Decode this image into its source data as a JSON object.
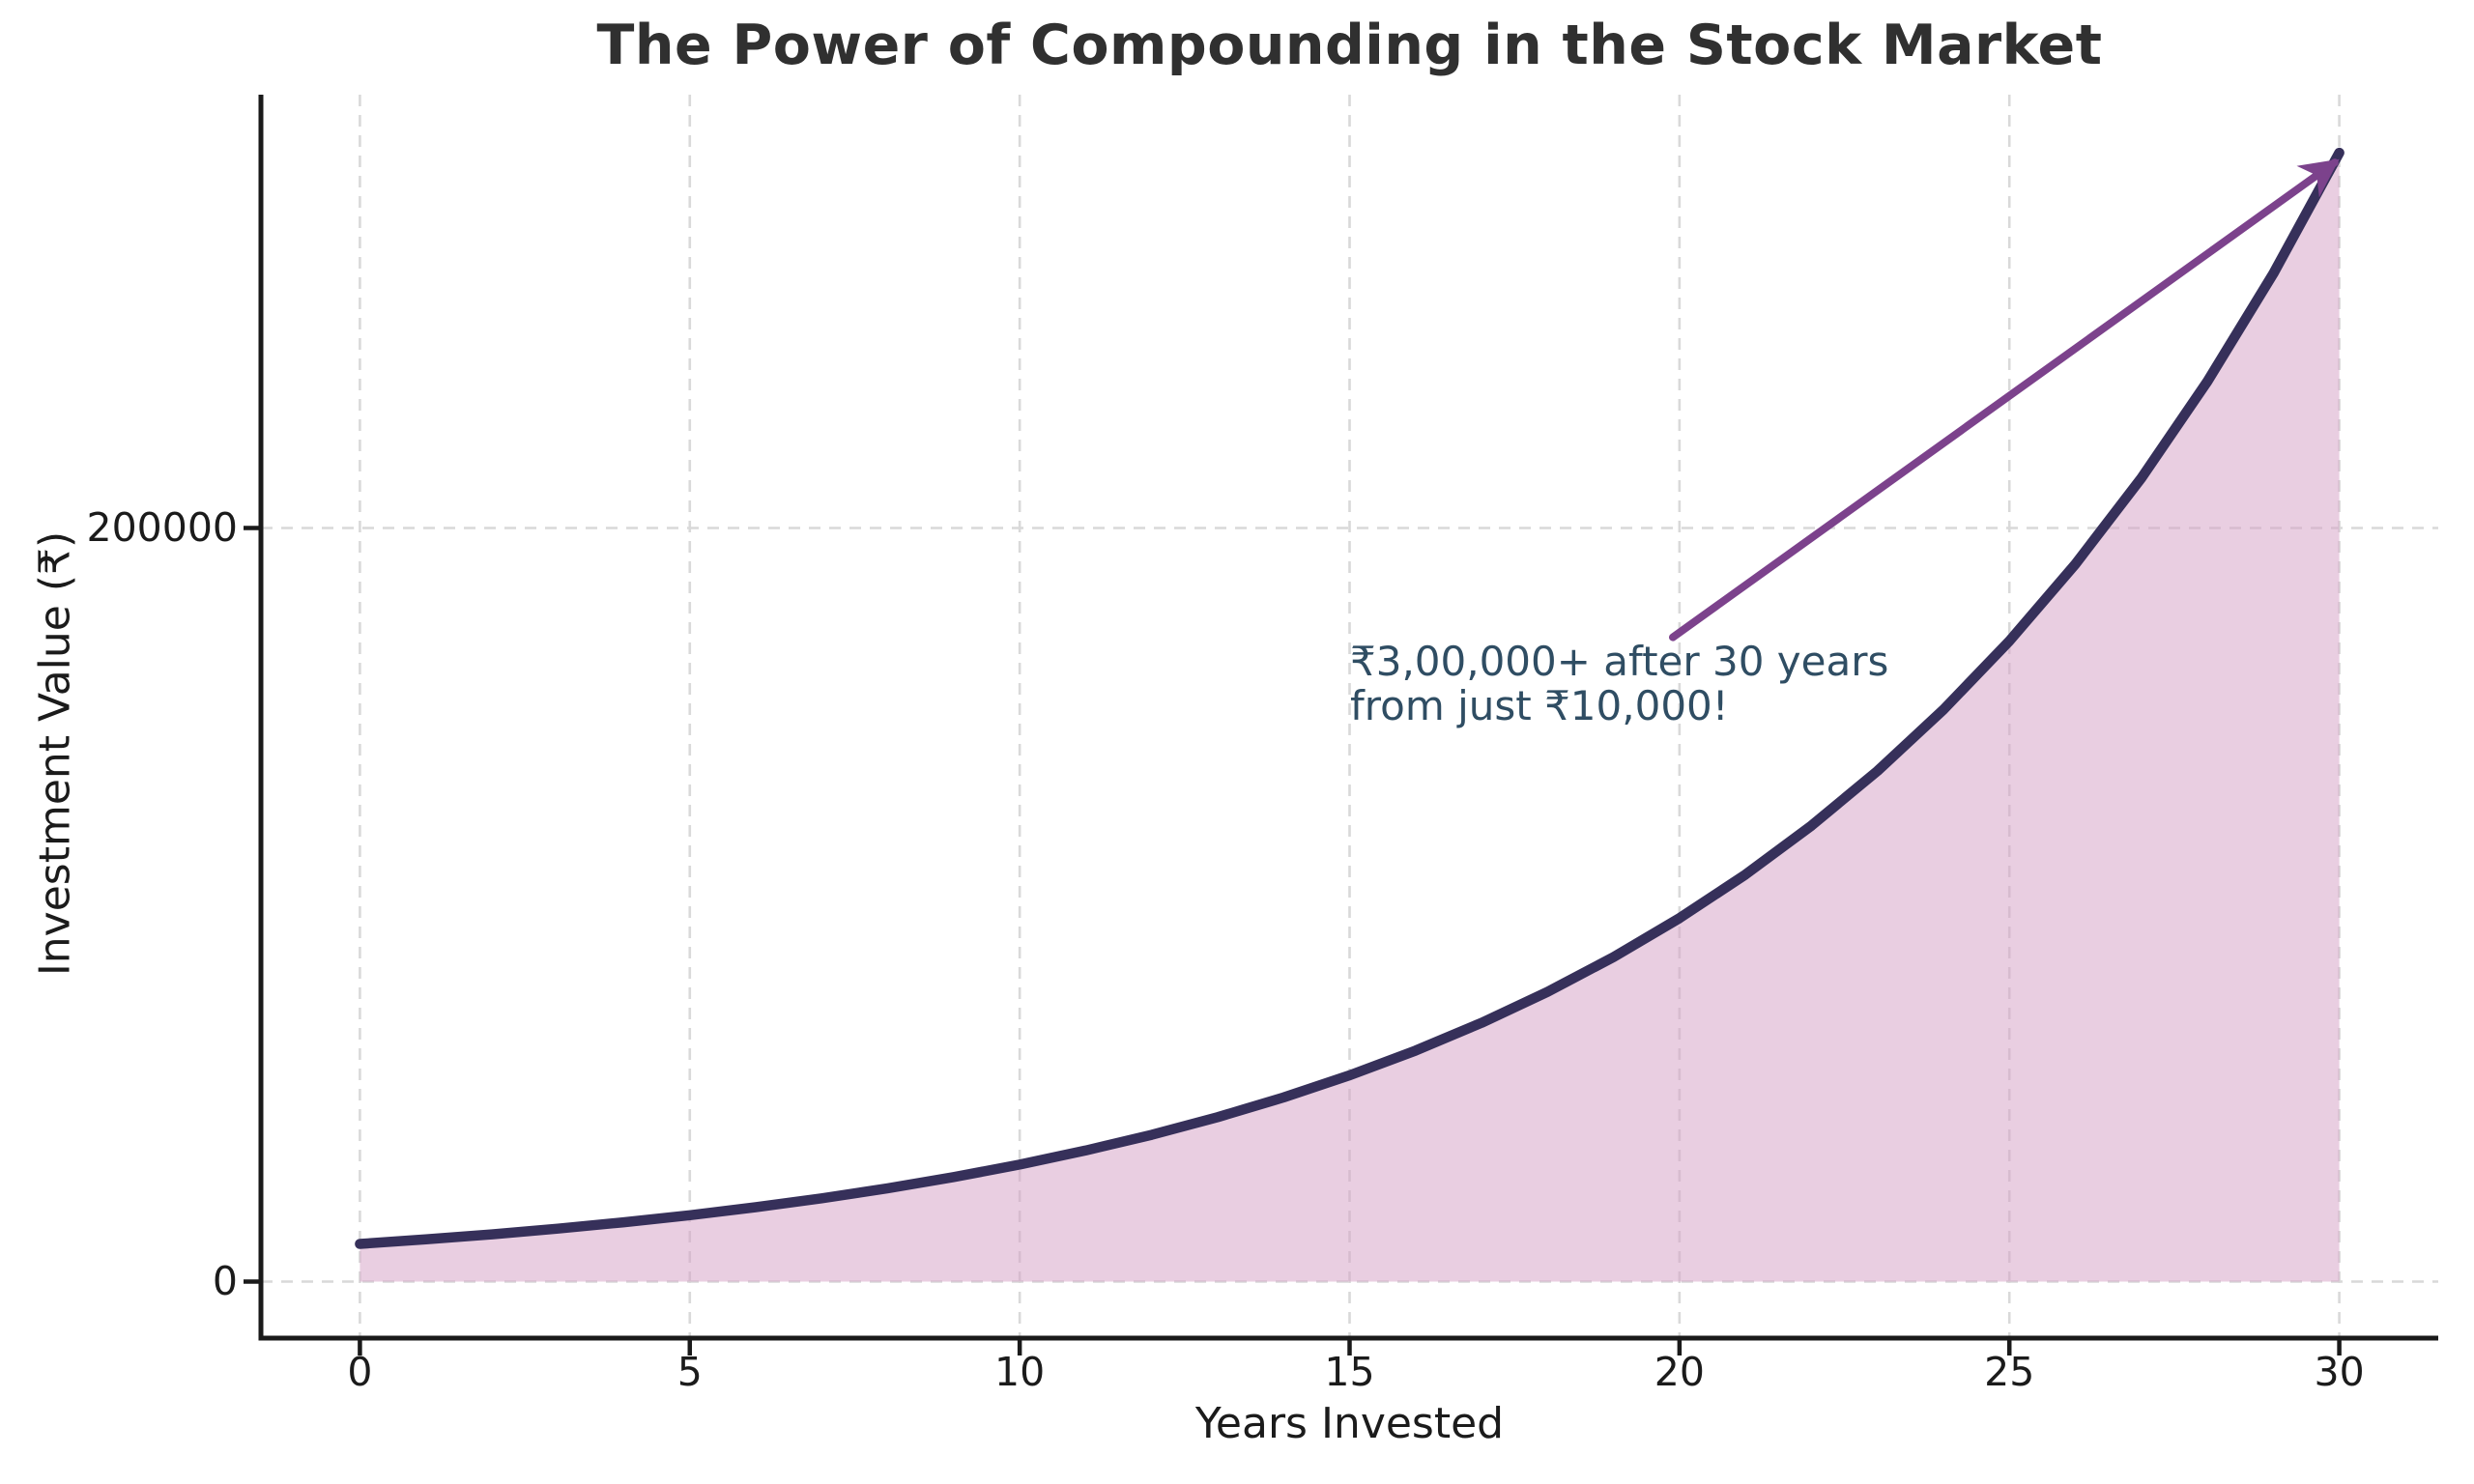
{
  "chart_data": {
    "type": "area",
    "title": "The Power of Compounding in the Stock Market",
    "xlabel": "Years Invested",
    "ylabel": "Investment Value (₹)",
    "x": [
      0,
      1,
      2,
      3,
      4,
      5,
      6,
      7,
      8,
      9,
      10,
      11,
      12,
      13,
      14,
      15,
      16,
      17,
      18,
      19,
      20,
      21,
      22,
      23,
      24,
      25,
      26,
      27,
      28,
      29,
      30
    ],
    "values": [
      10000,
      11200,
      12544,
      14049,
      15735,
      17623,
      19738,
      22107,
      24760,
      27731,
      31058,
      34785,
      38960,
      43635,
      48871,
      54736,
      61304,
      68660,
      76900,
      86128,
      96463,
      108038,
      121003,
      135523,
      151786,
      170001,
      190401,
      213249,
      238839,
      267499,
      299599
    ],
    "xlim": [
      -1.5,
      31.5
    ],
    "ylim": [
      -15000,
      315000
    ],
    "xticks": [
      0,
      5,
      10,
      15,
      20,
      25,
      30
    ],
    "yticks": [
      0,
      200000
    ],
    "grid": true,
    "grid_style": "dashed",
    "legend": "none",
    "annotation": {
      "lines": [
        "₹3,00,000+ after 30 years",
        "from just ₹10,000!"
      ],
      "text_xy": [
        15.0,
        170000
      ],
      "arrow_tail_xy": [
        19.9,
        171000
      ],
      "arrow_head_xy": [
        29.93,
        297000
      ]
    },
    "colors": {
      "line": "#36305a",
      "fill": "#d6a2c6",
      "fill_opacity": 0.53,
      "arrow": "#7c428c",
      "annotation_text": "#2f4d63",
      "grid": "#d9d9d9",
      "axis": "#1a1a1a",
      "tick_label": "#1b1b1b",
      "title": "#303030",
      "background": "#ffffff"
    }
  }
}
